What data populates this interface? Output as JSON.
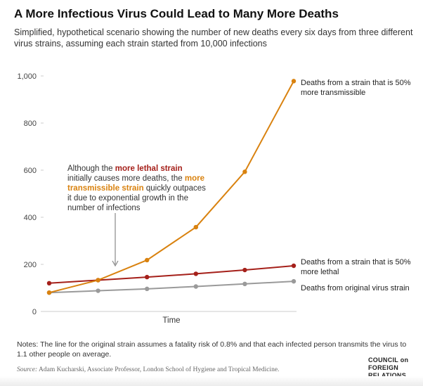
{
  "title": "A More Infectious Virus Could Lead to Many More Deaths",
  "subtitle": "Simplified, hypothetical scenario showing the number of new deaths every six days from three different virus strains, assuming each strain started from 10,000 infections",
  "annotation": {
    "part1": "Although the ",
    "lethal": "more lethal strain",
    "part2": " initially causes more deaths, the ",
    "transmissible": "more transmissible strain",
    "part3": " quickly outpaces it due to exponential growth in the number of infections"
  },
  "notes": "Notes: The line for the original strain assumes a fatality risk of 0.8% and that each infected person transmits the virus to 1.1 other people on average.",
  "source_label": "Source:",
  "source_text": " Adam Kucharski, Associate Professor, London School of Hygiene and Tropical Medicine.",
  "logo": [
    "COUNCIL on",
    "FOREIGN",
    "RELATIONS"
  ],
  "chart_data": {
    "type": "line",
    "title": "A More Infectious Virus Could Lead to Many More Deaths",
    "xlabel": "Time",
    "ylabel": "",
    "ylim": [
      0,
      1000
    ],
    "yticks": [
      0,
      200,
      400,
      600,
      800,
      1000
    ],
    "ytick_labels": [
      "0",
      "200",
      "400",
      "600",
      "800",
      "1,000"
    ],
    "x": [
      1,
      2,
      3,
      4,
      5,
      6
    ],
    "grid": false,
    "series": [
      {
        "name": "Deaths from a strain that is 50% more transmissible",
        "color": "#d9820f",
        "values": [
          80,
          133,
          218,
          358,
          593,
          978
        ]
      },
      {
        "name": "Deaths from a strain that is 50% more lethal",
        "color": "#a5201a",
        "values": [
          120,
          133,
          146,
          160,
          176,
          194
        ]
      },
      {
        "name": "Deaths from original virus strain",
        "color": "#9a9a9a",
        "values": [
          80,
          88,
          96,
          106,
          117,
          128
        ]
      }
    ]
  }
}
